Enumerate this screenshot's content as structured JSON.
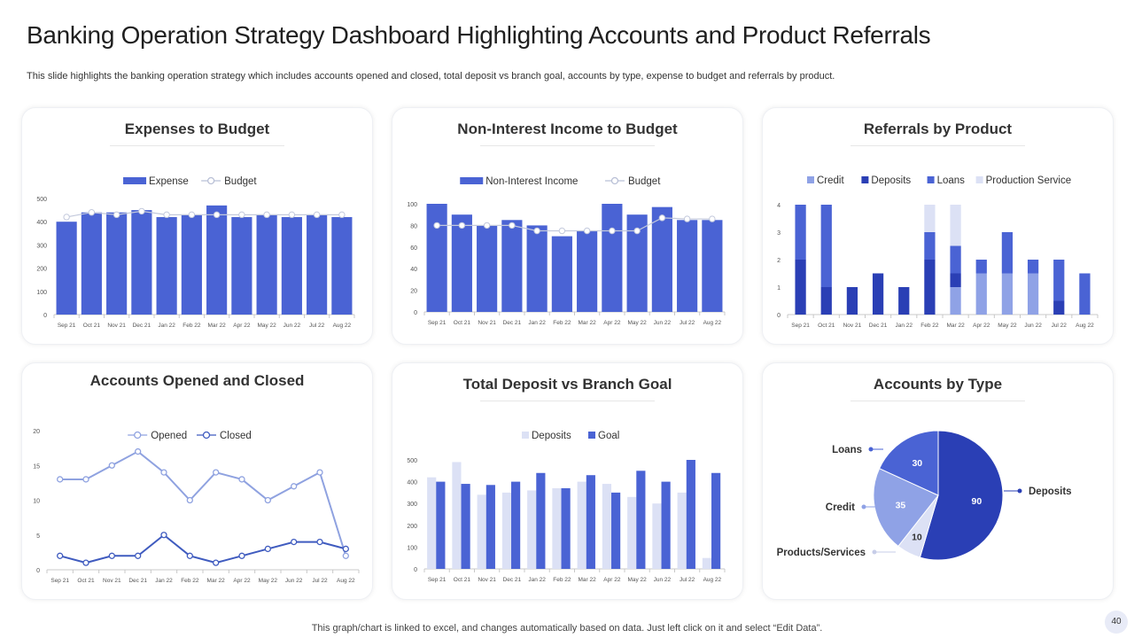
{
  "header": {
    "title": "Banking Operation Strategy Dashboard Highlighting Accounts and Product Referrals",
    "subtitle": "This slide highlights the banking operation strategy which includes accounts opened and closed, total deposit vs branch goal, accounts by type, expense to budget and referrals by product."
  },
  "footer": {
    "note": "This graph/chart is linked to excel, and changes automatically based on data. Just left click on it and select “Edit Data”.",
    "page_number": "40"
  },
  "colors": {
    "primary": "#4a63d4",
    "dark": "#2a3fb5",
    "mid": "#8fa2e6",
    "light": "#dce1f5",
    "line_light": "#8fa2e0",
    "line_dark": "#3f5bbf"
  },
  "cards": {
    "expenses": {
      "title": "Expenses to Budget"
    },
    "income": {
      "title": "Non-Interest Income to Budget"
    },
    "referrals": {
      "title": "Referrals by Product"
    },
    "accounts": {
      "title": "Accounts Opened and Closed"
    },
    "deposit": {
      "title": "Total Deposit vs Branch Goal"
    },
    "types": {
      "title": "Accounts by Type"
    }
  },
  "chart_data": [
    {
      "id": "expenses",
      "type": "bar",
      "title": "Expenses to Budget",
      "categories": [
        "Sep 21",
        "Oct 21",
        "Nov 21",
        "Dec 21",
        "Jan 22",
        "Feb 22",
        "Mar 22",
        "Apr 22",
        "May 22",
        "Jun 22",
        "Jul 22",
        "Aug 22"
      ],
      "series": [
        {
          "name": "Expense",
          "kind": "bar",
          "values": [
            400,
            440,
            440,
            450,
            420,
            430,
            470,
            420,
            430,
            420,
            430,
            420
          ]
        },
        {
          "name": "Budget",
          "kind": "line",
          "values": [
            420,
            440,
            430,
            445,
            430,
            430,
            430,
            430,
            430,
            430,
            430,
            430
          ]
        }
      ],
      "ylim": [
        0,
        500
      ],
      "yticks": [
        0,
        100,
        200,
        300,
        400,
        500
      ]
    },
    {
      "id": "income",
      "type": "bar",
      "title": "Non-Interest Income to Budget",
      "categories": [
        "Sep 21",
        "Oct 21",
        "Nov 21",
        "Dec 21",
        "Jan 22",
        "Feb 22",
        "Mar 22",
        "Apr 22",
        "May 22",
        "Jun 22",
        "Jul 22",
        "Aug 22"
      ],
      "series": [
        {
          "name": "Non-Interest Income",
          "kind": "bar",
          "values": [
            100,
            90,
            80,
            85,
            80,
            70,
            75,
            100,
            90,
            97,
            85,
            85
          ]
        },
        {
          "name": "Budget",
          "kind": "line",
          "values": [
            80,
            80,
            80,
            80,
            75,
            75,
            75,
            75,
            75,
            87,
            86,
            86
          ]
        }
      ],
      "ylim": [
        0,
        100
      ],
      "yticks": [
        0,
        20,
        40,
        60,
        80,
        100
      ]
    },
    {
      "id": "referrals",
      "type": "bar",
      "stacked": true,
      "title": "Referrals by Product",
      "categories": [
        "Sep 21",
        "Oct 21",
        "Nov 21",
        "Dec 21",
        "Jan 22",
        "Feb 22",
        "Mar 22",
        "Apr 22",
        "May 22",
        "Jun 22",
        "Jul 22",
        "Aug 22"
      ],
      "series": [
        {
          "name": "Credit",
          "values": [
            0,
            0,
            0,
            0,
            0,
            0,
            1,
            1.5,
            1.5,
            1.5,
            0,
            0
          ]
        },
        {
          "name": "Deposits",
          "values": [
            2,
            1,
            1,
            1.5,
            1,
            2,
            0.5,
            0,
            0,
            0,
            0.5,
            0
          ]
        },
        {
          "name": "Loans",
          "values": [
            2,
            3,
            0,
            0,
            0,
            1,
            1,
            0.5,
            1.5,
            0.5,
            1.5,
            1.5
          ]
        },
        {
          "name": "Production Service",
          "values": [
            0,
            0,
            0,
            0,
            0,
            1,
            1.5,
            0,
            0,
            0,
            0,
            0
          ]
        }
      ],
      "ylim": [
        0,
        4
      ],
      "yticks": [
        0,
        1,
        2,
        3,
        4
      ]
    },
    {
      "id": "accounts",
      "type": "line",
      "title": "Accounts Opened and Closed",
      "categories": [
        "Sep 21",
        "Oct 21",
        "Nov 21",
        "Dec 21",
        "Jan 22",
        "Feb 22",
        "Mar 22",
        "Apr 22",
        "May 22",
        "Jun 22",
        "Jul 22",
        "Aug 22"
      ],
      "series": [
        {
          "name": "Opened",
          "values": [
            13,
            13,
            15,
            17,
            14,
            10,
            14,
            13,
            10,
            12,
            14,
            2
          ]
        },
        {
          "name": "Closed",
          "values": [
            2,
            1,
            2,
            2,
            5,
            2,
            1,
            2,
            3,
            4,
            4,
            3
          ]
        }
      ],
      "ylim": [
        0,
        20
      ],
      "yticks": [
        0,
        5,
        10,
        15,
        20
      ]
    },
    {
      "id": "deposit",
      "type": "bar",
      "title": "Total Deposit vs Branch Goal",
      "categories": [
        "Sep 21",
        "Oct 21",
        "Nov 21",
        "Dec 21",
        "Jan 22",
        "Feb 22",
        "Mar 22",
        "Apr 22",
        "May 22",
        "Jun 22",
        "Jul 22",
        "Aug 22"
      ],
      "series": [
        {
          "name": "Deposits",
          "values": [
            420,
            490,
            340,
            350,
            360,
            370,
            400,
            390,
            330,
            300,
            350,
            50
          ]
        },
        {
          "name": "Goal",
          "values": [
            400,
            390,
            385,
            400,
            440,
            370,
            430,
            350,
            450,
            400,
            500,
            440
          ]
        }
      ],
      "ylim": [
        0,
        500
      ],
      "yticks": [
        0,
        100,
        200,
        300,
        400,
        500
      ]
    },
    {
      "id": "types",
      "type": "pie",
      "title": "Accounts by Type",
      "slices": [
        {
          "label": "Deposits",
          "value": 90
        },
        {
          "label": "Products/Services",
          "value": 10
        },
        {
          "label": "Credit",
          "value": 35
        },
        {
          "label": "Loans",
          "value": 30
        }
      ]
    }
  ]
}
